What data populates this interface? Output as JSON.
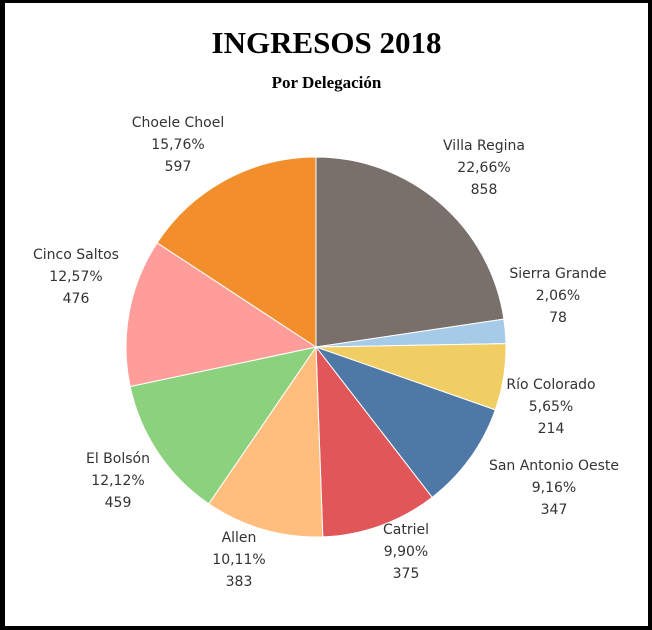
{
  "chart_data": {
    "type": "pie",
    "title": "INGRESOS 2018",
    "subtitle": "Por Delegación",
    "start_angle": "12 o'clock, clockwise",
    "slices": [
      {
        "label": "Villa Regina",
        "percent": "22,66%",
        "value": 858,
        "color": "#796f6b"
      },
      {
        "label": "Sierra Grande",
        "percent": "2,06%",
        "value": 78,
        "color": "#a6cbe8"
      },
      {
        "label": "Río Colorado",
        "percent": "5,65%",
        "value": 214,
        "color": "#f1ce63"
      },
      {
        "label": "San Antonio Oeste",
        "percent": "9,16%",
        "value": 347,
        "color": "#4e79a7"
      },
      {
        "label": "Catriel",
        "percent": "9,90%",
        "value": 375,
        "color": "#e15759"
      },
      {
        "label": "Allen",
        "percent": "10,11%",
        "value": 383,
        "color": "#ffbe7d"
      },
      {
        "label": "El Bolsón",
        "percent": "12,12%",
        "value": 459,
        "color": "#8cd17d"
      },
      {
        "label": "Cinco Saltos",
        "percent": "12,57%",
        "value": 476,
        "color": "#ff9d9a"
      },
      {
        "label": "Choele Choel",
        "percent": "15,76%",
        "value": 597,
        "color": "#f28e2b"
      }
    ]
  }
}
